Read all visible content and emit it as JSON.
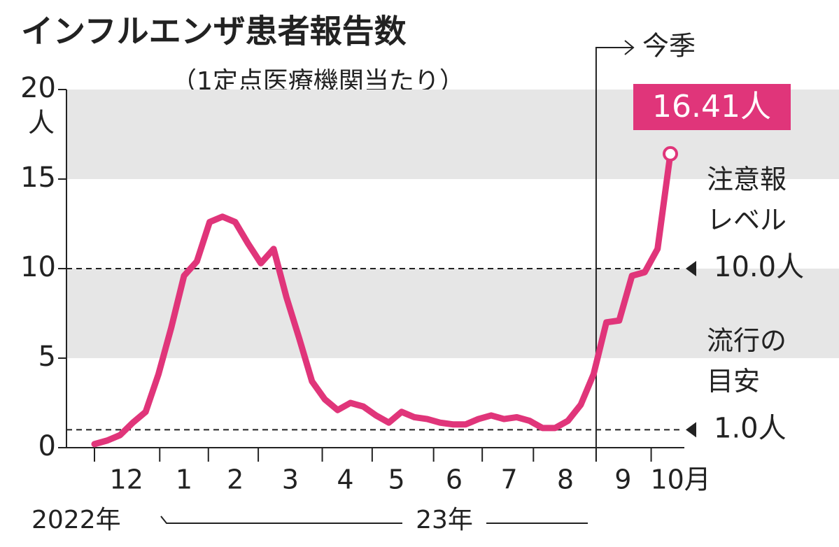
{
  "chart_data": {
    "type": "line",
    "title": "インフルエンザ患者報告数",
    "subtitle": "（1定点医療機関当たり）",
    "y_unit": "人",
    "x": [
      0,
      1,
      2,
      3,
      4,
      5,
      6,
      7,
      8,
      9,
      10,
      11,
      12,
      13,
      14,
      15,
      16,
      17,
      18,
      19,
      20,
      21,
      22,
      23,
      24,
      25,
      26,
      27,
      28,
      29,
      30,
      31,
      32,
      33,
      34,
      35,
      36,
      37,
      38,
      39,
      40,
      41,
      42,
      43,
      44,
      45
    ],
    "series": [
      {
        "name": "患者報告数",
        "color": "#e0357a",
        "values": [
          0.2,
          0.4,
          0.7,
          1.4,
          2.0,
          4.1,
          6.7,
          9.6,
          10.4,
          12.6,
          12.9,
          12.6,
          11.4,
          10.3,
          11.1,
          8.4,
          6.1,
          3.7,
          2.7,
          2.1,
          2.5,
          2.3,
          1.8,
          1.4,
          2.0,
          1.7,
          1.6,
          1.4,
          1.3,
          1.3,
          1.6,
          1.8,
          1.6,
          1.7,
          1.5,
          1.1,
          1.1,
          1.5,
          2.4,
          4.1,
          7.0,
          7.1,
          9.6,
          9.8,
          11.1,
          16.41
        ]
      }
    ],
    "last_label": "16.41人",
    "xlim": [
      0,
      45
    ],
    "xticks": [
      0,
      5.1,
      8.9,
      12.8,
      17.8,
      21.7,
      26.5,
      30.3,
      34.3,
      39.2,
      43.5
    ],
    "month_labels": [
      {
        "value": 2.5,
        "label": "12"
      },
      {
        "value": 7,
        "label": "1"
      },
      {
        "value": 11,
        "label": "2"
      },
      {
        "value": 15.3,
        "label": "3"
      },
      {
        "value": 19.6,
        "label": "4"
      },
      {
        "value": 23.6,
        "label": "5"
      },
      {
        "value": 28.1,
        "label": "6"
      },
      {
        "value": 32.4,
        "label": "7"
      },
      {
        "value": 36.8,
        "label": "8"
      },
      {
        "value": 41.3,
        "label": "9"
      },
      {
        "value": 45.8,
        "label": "10月"
      }
    ],
    "years": [
      "2022年",
      "23年"
    ],
    "season_start": {
      "value": 39.2,
      "label": "今季"
    },
    "ylim": [
      0,
      20
    ],
    "yticks": [
      0,
      5,
      10,
      15,
      20
    ],
    "bands": [
      {
        "from": 5,
        "to": 10
      },
      {
        "from": 15,
        "to": 20
      }
    ],
    "thresholds": [
      {
        "value": 10,
        "label": "10.0人",
        "note": [
          "注意報",
          "レベル"
        ]
      },
      {
        "value": 1,
        "label": "1.0人",
        "note": [
          "流行の",
          "目安"
        ]
      }
    ]
  }
}
